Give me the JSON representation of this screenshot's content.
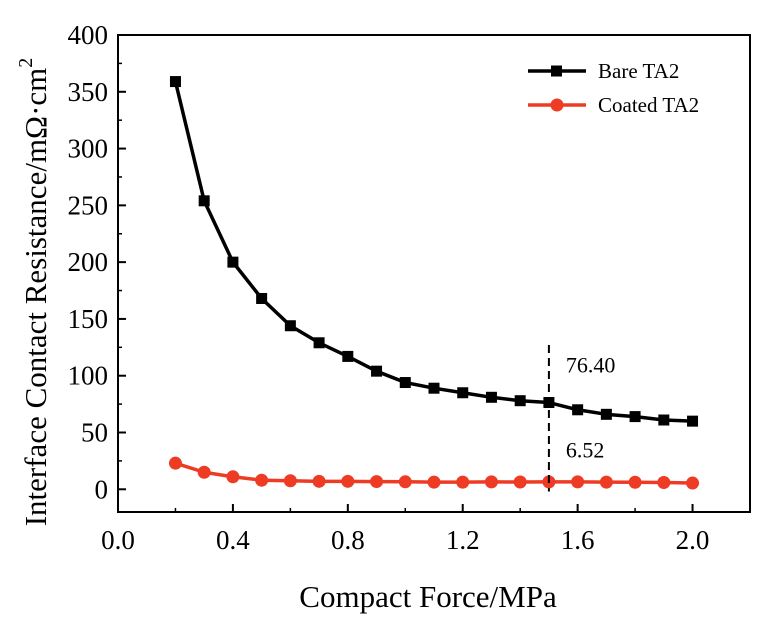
{
  "chart_data": {
    "type": "line",
    "xlabel": "Compact Force/MPa",
    "ylabel": "Interface Contact Resistance/mΩ·cm",
    "ylabel_superscript": "2",
    "xlim": [
      0.0,
      2.2
    ],
    "ylim": [
      -20,
      400
    ],
    "xticks": [
      "0.0",
      "0.4",
      "0.8",
      "1.2",
      "1.6",
      "2.0"
    ],
    "yticks": [
      "0",
      "50",
      "100",
      "150",
      "200",
      "250",
      "300",
      "350",
      "400"
    ],
    "grid": false,
    "legend_position": "top-right",
    "x": [
      0.2,
      0.3,
      0.4,
      0.5,
      0.6,
      0.7,
      0.8,
      0.9,
      1.0,
      1.1,
      1.2,
      1.3,
      1.4,
      1.5,
      1.6,
      1.7,
      1.8,
      1.9,
      2.0
    ],
    "series": [
      {
        "name": "Bare TA2",
        "color": "#000000",
        "marker": "square",
        "values": [
          359,
          254,
          200,
          168,
          144,
          129,
          117,
          104,
          94,
          89,
          85,
          81,
          78,
          76.4,
          70,
          66,
          64,
          61,
          60
        ]
      },
      {
        "name": "Coated TA2",
        "color": "#ee3b24",
        "marker": "circle",
        "values": [
          23,
          15,
          11,
          8,
          7.5,
          7,
          7,
          6.8,
          6.6,
          6.3,
          6.3,
          6.5,
          6.4,
          6.52,
          6.5,
          6.3,
          6.2,
          6.0,
          5.5
        ]
      }
    ],
    "annotations": [
      {
        "x": 1.5,
        "label": "76.40",
        "series": "Bare TA2"
      },
      {
        "x": 1.5,
        "label": "6.52",
        "series": "Coated TA2"
      }
    ],
    "reference_line": {
      "x": 1.5,
      "style": "dashed"
    }
  }
}
